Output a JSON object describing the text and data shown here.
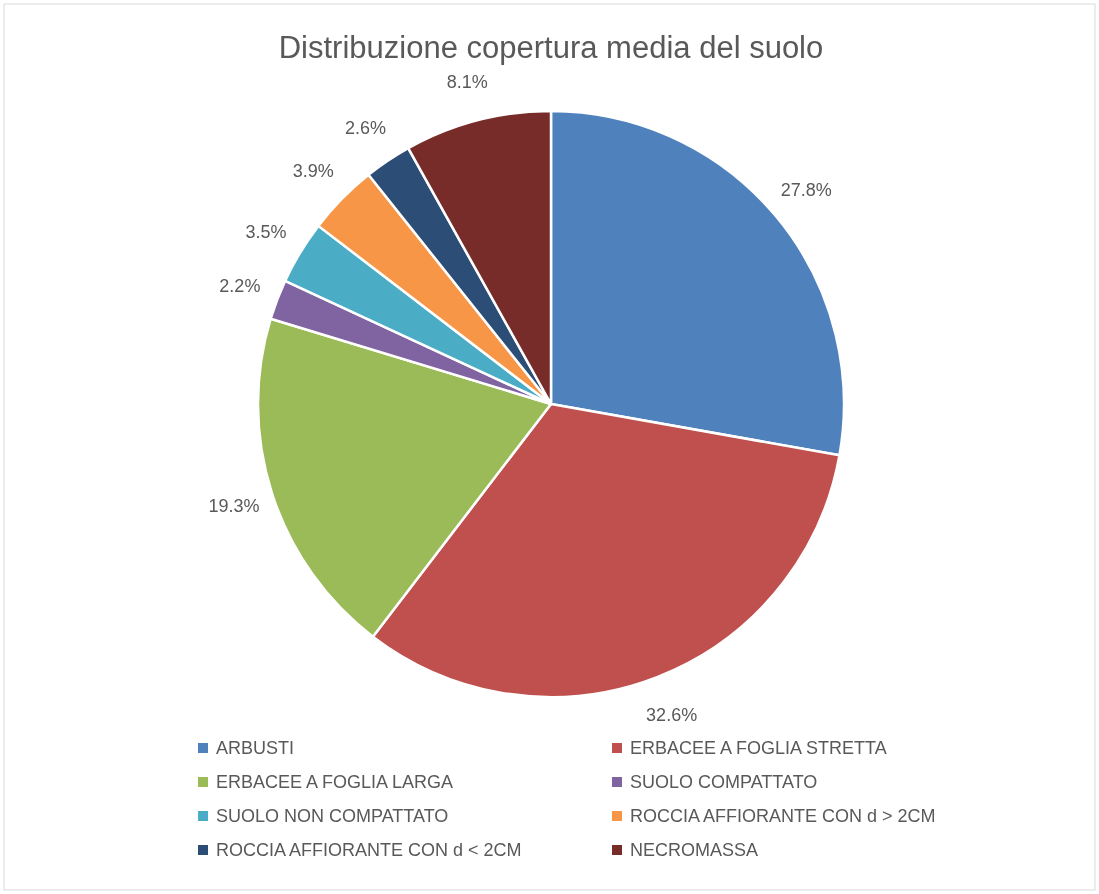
{
  "chart_data": {
    "type": "pie",
    "title": "Distribuzione copertura media del suolo",
    "categories": [
      "ARBUSTI",
      "ERBACEE A FOGLIA STRETTA",
      "ERBACEE A FOGLIA LARGA",
      "SUOLO COMPATTATO",
      "SUOLO NON COMPATTATO",
      "ROCCIA AFFIORANTE CON d > 2CM",
      "ROCCIA AFFIORANTE CON d < 2CM",
      "NECROMASSA"
    ],
    "values": [
      27.8,
      32.6,
      19.3,
      2.2,
      3.5,
      3.9,
      2.6,
      8.1
    ],
    "value_labels": [
      "27.8%",
      "32.6%",
      "19.3%",
      "2.2%",
      "3.5%",
      "3.9%",
      "2.6%",
      "8.1%"
    ],
    "colors": [
      "#4f81bd",
      "#c0504d",
      "#9bbb59",
      "#8064a2",
      "#4bacc6",
      "#f79646",
      "#2c4d75",
      "#772c2a"
    ],
    "legend": "bottom"
  }
}
